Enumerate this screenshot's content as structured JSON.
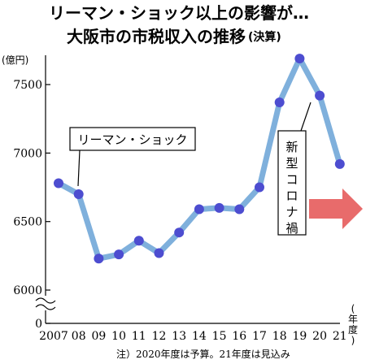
{
  "chart_data": {
    "type": "line",
    "title_line1": "リーマン・ショック以上の影響が…",
    "title_line2": "大阪市の市税収入の推移",
    "title_suffix": "(決算)",
    "ylabel": "(億円)",
    "xlabel": "(年度)",
    "categories": [
      "2007",
      "08",
      "09",
      "10",
      "11",
      "12",
      "13",
      "14",
      "15",
      "16",
      "17",
      "18",
      "19",
      "20",
      "21"
    ],
    "values": [
      6780,
      6700,
      6230,
      6260,
      6360,
      6270,
      6420,
      6590,
      6600,
      6590,
      6750,
      7370,
      7690,
      7420,
      6920
    ],
    "yticks": [
      0,
      6000,
      6500,
      7000,
      7500
    ],
    "ylim": [
      6000,
      7800
    ],
    "axis_break": true,
    "grid": false,
    "annotations": {
      "lehman": "リーマン・ショック",
      "corona": "新型コロナ禍"
    },
    "note": "注）2020年度は予算。21年度は見込み",
    "colors": {
      "line": "#7fb0dc",
      "marker": "#4d4dd0",
      "arrow": "#e86b6b"
    }
  }
}
